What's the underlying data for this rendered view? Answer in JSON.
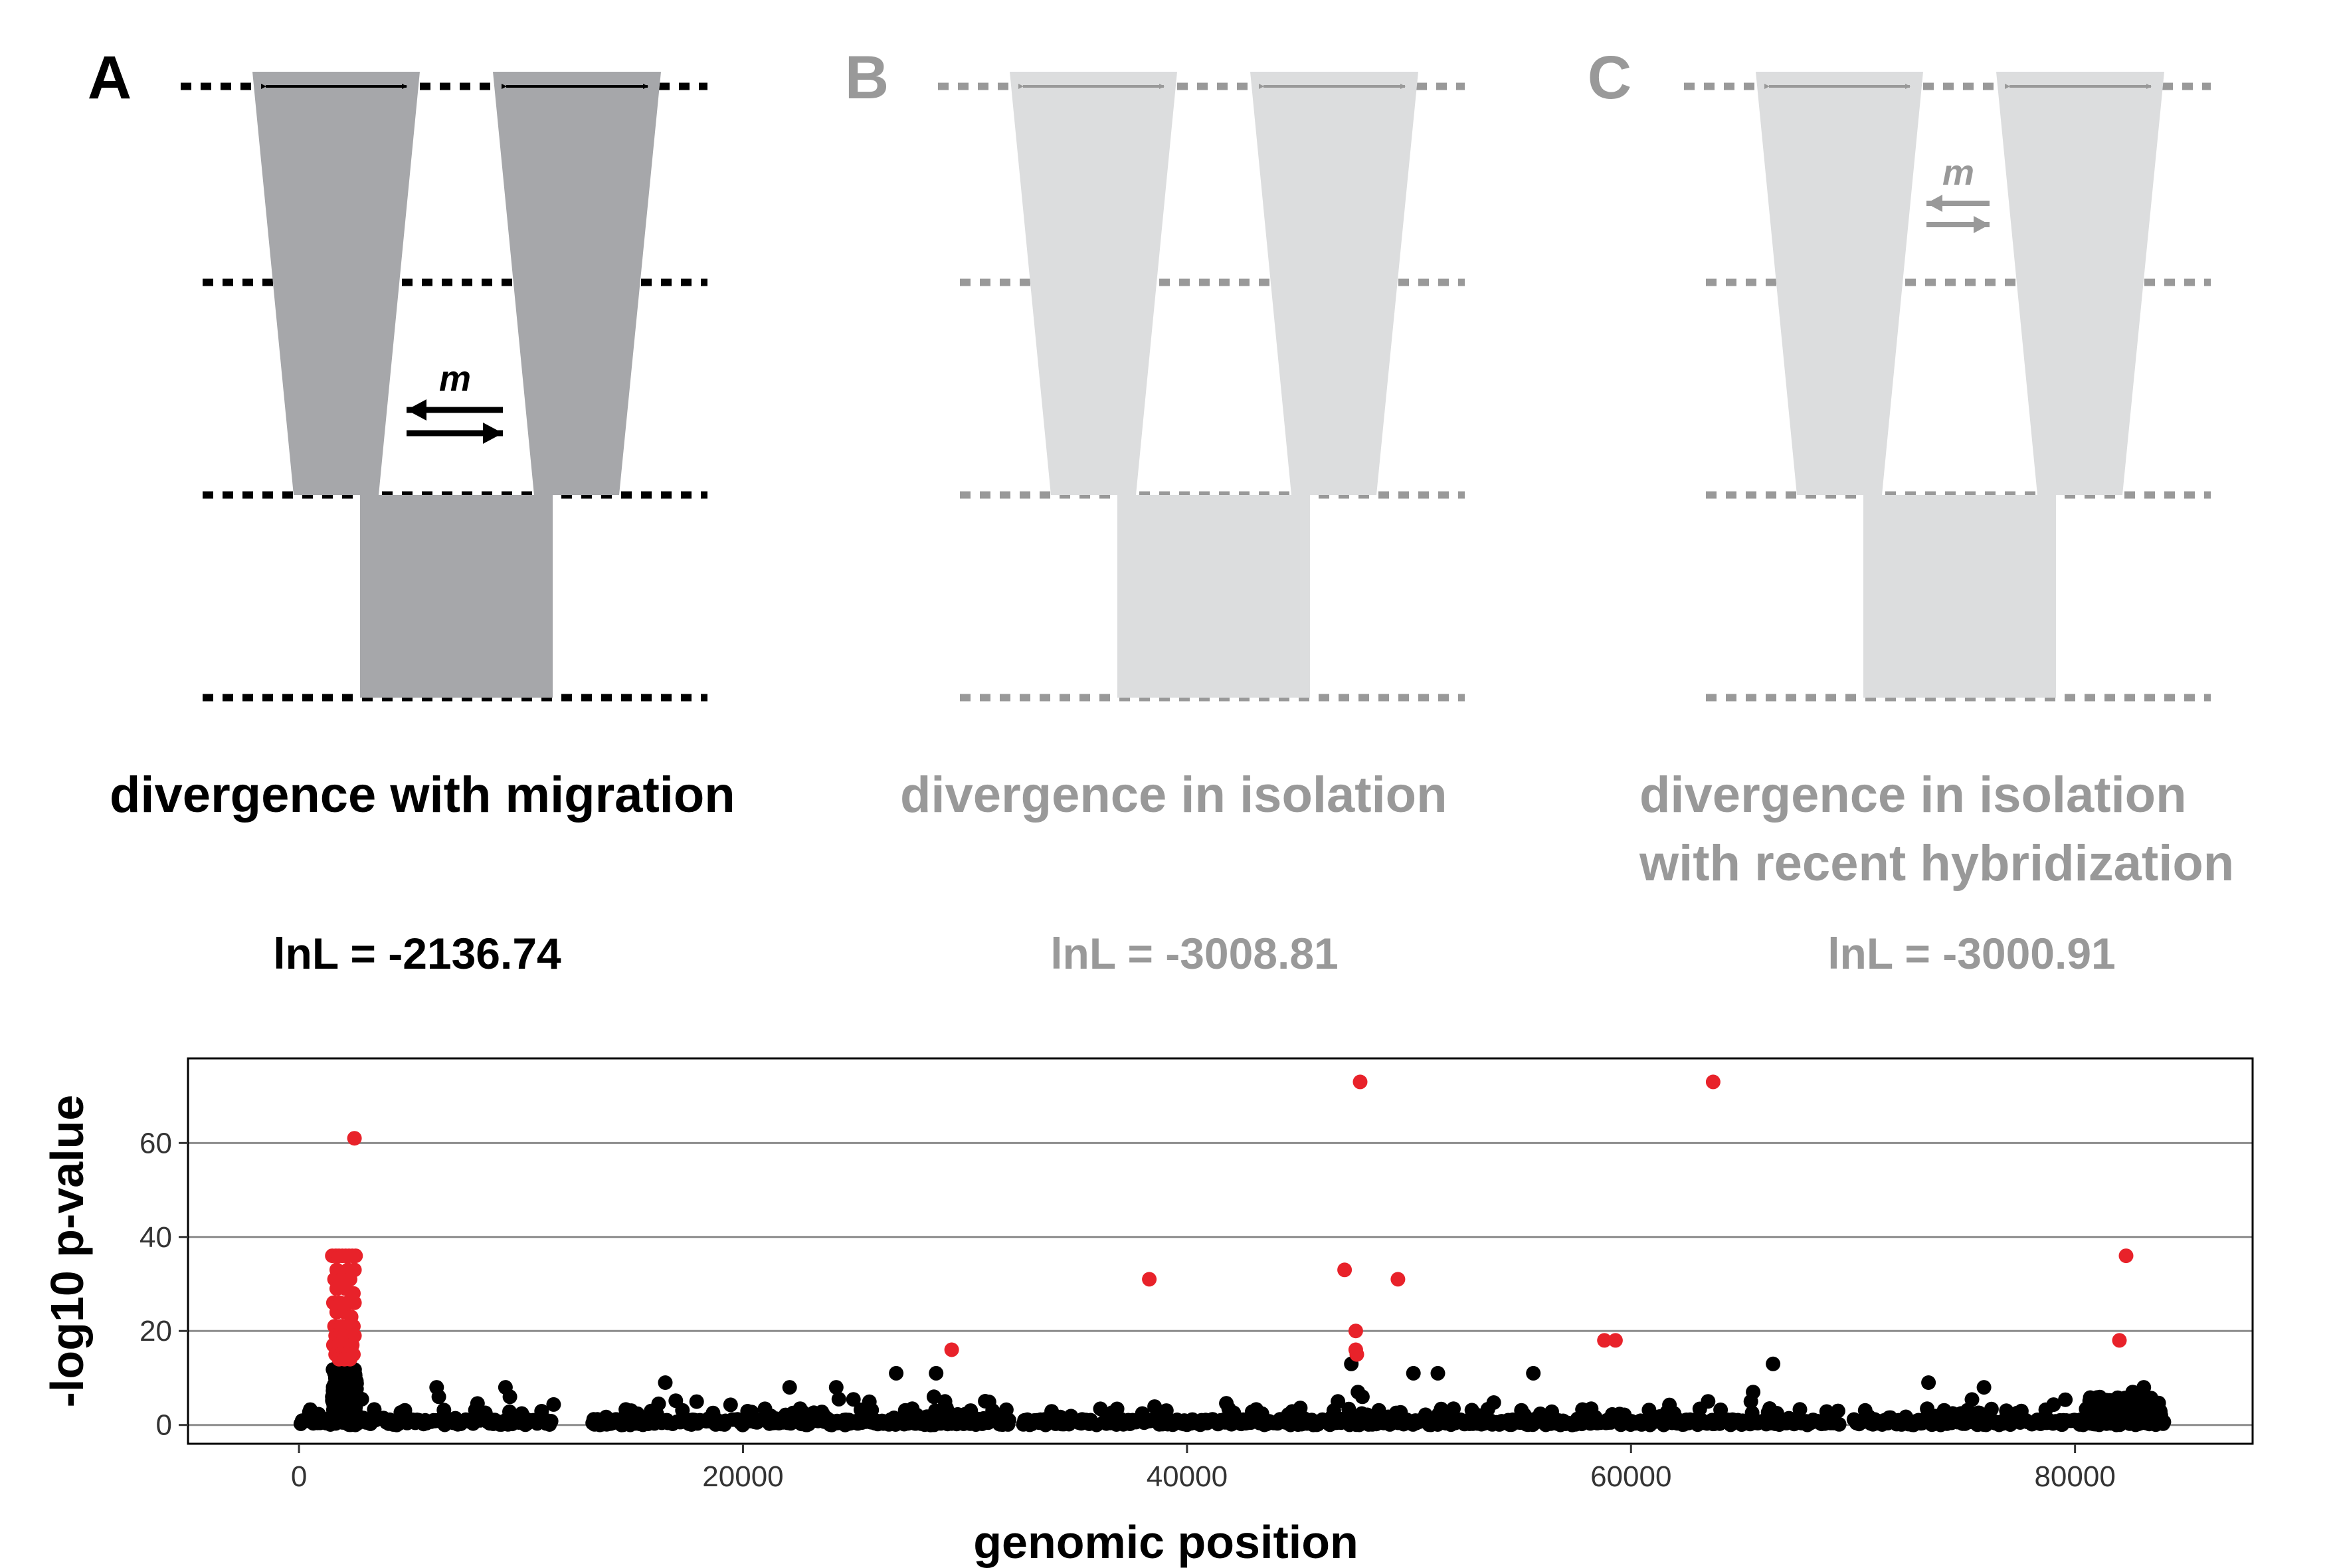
{
  "colors": {
    "active": "#000000",
    "inactive": "#999999",
    "active_fill": "#a6a7aa",
    "inactive_fill": "#dcddde",
    "highlight": "#e8222a",
    "point": "#000000",
    "gridline": "#8c8c8c"
  },
  "models": [
    {
      "letter": "A",
      "caption": [
        "divergence with migration"
      ],
      "lnl": "lnL = -2136.74",
      "migration": "m",
      "state": "active"
    },
    {
      "letter": "B",
      "caption": [
        "divergence in isolation"
      ],
      "lnl": "lnL = -3008.81",
      "migration": "",
      "state": "inactive"
    },
    {
      "letter": "C",
      "caption": [
        "divergence in isolation",
        "with recent hybridization"
      ],
      "lnl": "lnL = -3000.91",
      "migration": "m",
      "state": "inactive"
    }
  ],
  "chart_data": {
    "type": "scatter",
    "xlabel": "genomic position",
    "ylabel": "-log10 p-value",
    "xlim": [
      -5000,
      88000
    ],
    "ylim": [
      -4,
      78
    ],
    "xticks": [
      0,
      20000,
      40000,
      60000,
      80000
    ],
    "yticks": [
      0,
      20,
      40,
      60
    ],
    "grid": "horizontal major",
    "series": [
      {
        "color_key": "highlight",
        "points": [
          [
            2500,
            61
          ],
          [
            47800,
            73
          ],
          [
            63700,
            73
          ],
          [
            38300,
            31
          ],
          [
            47100,
            33
          ],
          [
            49500,
            31
          ],
          [
            82300,
            36
          ],
          [
            29400,
            16
          ],
          [
            47600,
            20
          ],
          [
            47600,
            16
          ],
          [
            47650,
            15
          ],
          [
            58800,
            18
          ],
          [
            59300,
            18
          ],
          [
            82000,
            18
          ],
          [
            1500,
            36
          ],
          [
            1650,
            36
          ],
          [
            1800,
            36
          ],
          [
            1950,
            36
          ],
          [
            2100,
            36
          ],
          [
            2250,
            36
          ],
          [
            2400,
            36
          ],
          [
            2550,
            36
          ],
          [
            1700,
            33
          ],
          [
            2200,
            33
          ],
          [
            2500,
            33
          ],
          [
            1600,
            31
          ],
          [
            1950,
            31
          ],
          [
            2300,
            31
          ],
          [
            1700,
            29
          ],
          [
            2100,
            29
          ],
          [
            2450,
            28
          ],
          [
            1550,
            26
          ],
          [
            1850,
            26
          ],
          [
            2200,
            26
          ],
          [
            2500,
            26
          ],
          [
            1700,
            24
          ],
          [
            2050,
            24
          ],
          [
            2350,
            23
          ],
          [
            1600,
            21
          ],
          [
            1900,
            21
          ],
          [
            2200,
            21
          ],
          [
            2450,
            21
          ],
          [
            1650,
            19
          ],
          [
            1800,
            19
          ],
          [
            2000,
            19
          ],
          [
            2300,
            19
          ],
          [
            2500,
            19
          ],
          [
            1550,
            17
          ],
          [
            1750,
            17
          ],
          [
            2100,
            17
          ],
          [
            2400,
            17
          ],
          [
            1650,
            15
          ],
          [
            1900,
            15
          ],
          [
            2150,
            15
          ],
          [
            2450,
            15
          ],
          [
            1800,
            14
          ],
          [
            2050,
            14
          ],
          [
            2300,
            14
          ]
        ]
      },
      {
        "color_key": "point",
        "points": [
          [
            47400,
            13
          ],
          [
            66400,
            13
          ],
          [
            1900,
            12
          ],
          [
            2300,
            12
          ],
          [
            26900,
            11
          ],
          [
            28700,
            11
          ],
          [
            50200,
            11
          ],
          [
            51300,
            11
          ],
          [
            55600,
            11
          ],
          [
            1700,
            10
          ],
          [
            2200,
            10
          ],
          [
            2400,
            9
          ],
          [
            16500,
            9
          ],
          [
            73400,
            9
          ],
          [
            75900,
            8
          ],
          [
            83100,
            8
          ],
          [
            6200,
            8
          ],
          [
            6300,
            6
          ],
          [
            9300,
            8
          ],
          [
            9500,
            6
          ],
          [
            22100,
            8
          ],
          [
            24200,
            8
          ],
          [
            47700,
            7
          ],
          [
            47900,
            6
          ],
          [
            65500,
            7
          ],
          [
            65400,
            5
          ],
          [
            82600,
            7
          ],
          [
            28600,
            6
          ],
          [
            1600,
            8
          ],
          [
            2050,
            7
          ],
          [
            2350,
            6
          ],
          [
            1500,
            6
          ],
          [
            2550,
            5
          ],
          [
            29100,
            5
          ],
          [
            46800,
            5
          ],
          [
            83000,
            6
          ]
        ]
      }
    ]
  }
}
